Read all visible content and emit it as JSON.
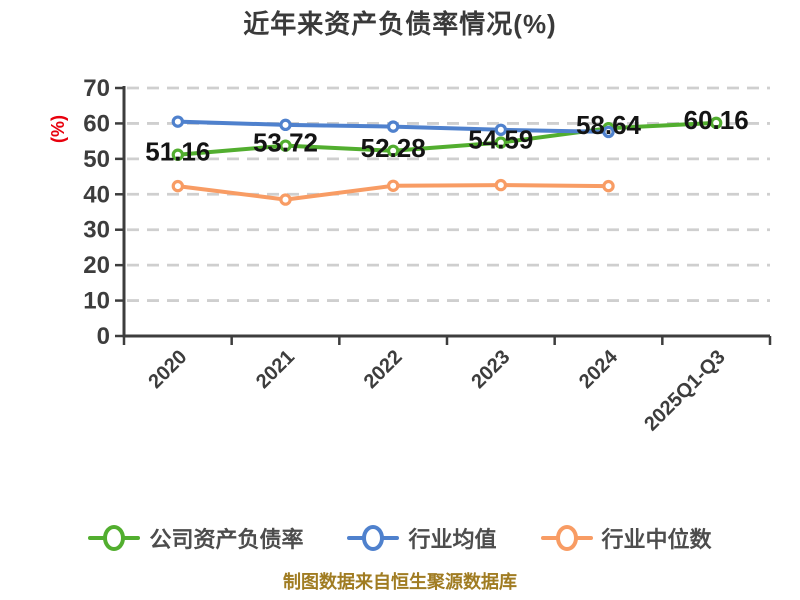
{
  "chart_data": {
    "type": "line",
    "title": "近年来资产负债率情况(%)",
    "ylabel": "(%)",
    "xlabel": "",
    "categories": [
      "2020",
      "2021",
      "2022",
      "2023",
      "2024",
      "2025Q1-Q3"
    ],
    "ylim": [
      0,
      70
    ],
    "yticks": [
      0,
      10,
      20,
      30,
      40,
      50,
      60,
      70
    ],
    "grid": "horizontal-dashed",
    "legend_position": "bottom",
    "series": [
      {
        "name": "公司资产负债率",
        "color": "#52ae2f",
        "values": [
          51.16,
          53.72,
          52.28,
          54.59,
          58.64,
          60.16
        ],
        "data_labels": [
          "51.16",
          "53.72",
          "52.28",
          "54.59",
          "58.64",
          "60.16"
        ],
        "data_labels_shown": true
      },
      {
        "name": "行业均值",
        "color": "#4f81cd",
        "values": [
          60.5,
          59.6,
          59.1,
          58.2,
          57.6,
          null
        ],
        "data_labels_shown": false
      },
      {
        "name": "行业中位数",
        "color": "#f89c64",
        "values": [
          42.3,
          38.5,
          42.4,
          42.6,
          42.3,
          null
        ],
        "data_labels_shown": false
      }
    ],
    "footer": "制图数据来自恒生聚源数据库"
  },
  "style_colors": {
    "background": "#ffffff",
    "title": "#3a3a3a",
    "axis": "#3d3d3d",
    "tick_label": "#3d3d3d",
    "gridline": "#cfcfcf",
    "data_label": "#141414",
    "legend_text": "#4d4d4d",
    "footer_text": "#a07c22",
    "ylabel_red": "#e8000d",
    "marker_fill": "#ffffff"
  }
}
